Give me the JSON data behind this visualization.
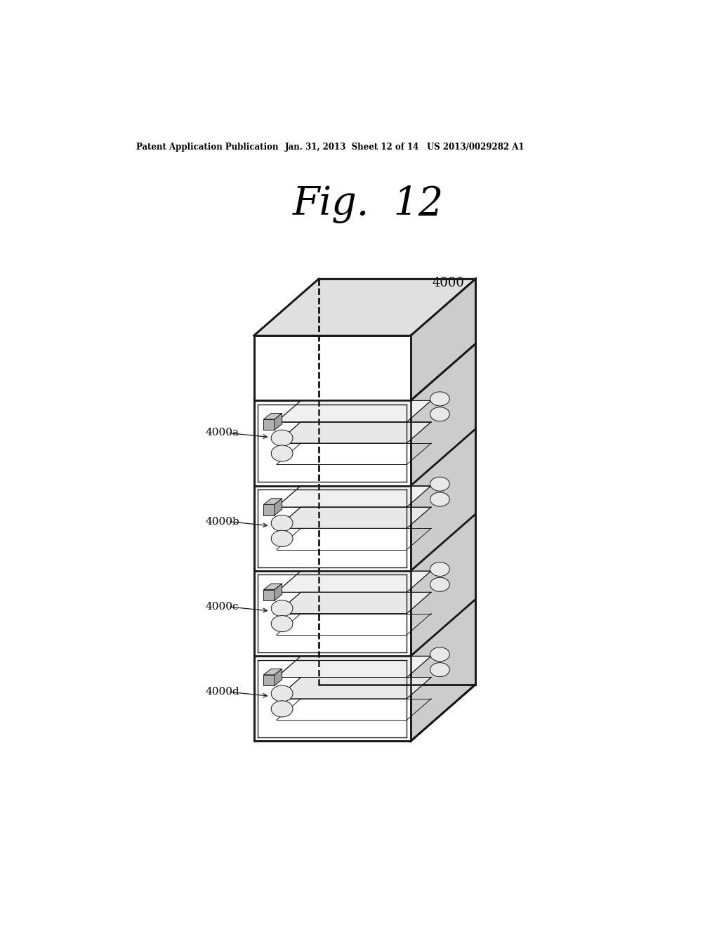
{
  "title": "Fig.  12",
  "patent_left": "Patent Application Publication",
  "patent_mid": "Jan. 31, 2013  Sheet 12 of 14",
  "patent_right": "US 2013/0029282 A1",
  "main_label": "4000",
  "chamber_labels": [
    "4000a",
    "4000b",
    "4000c",
    "4000d"
  ],
  "bg_color": "#ffffff",
  "line_color": "#1a1a1a",
  "lw_outer": 1.8,
  "lw_inner": 1.0,
  "lw_detail": 0.7,
  "face_color_top": "#e0e0e0",
  "face_color_right": "#cccccc",
  "face_color_front": "#ffffff",
  "roller_color": "#e8e8e8",
  "block_color": "#b0b0b0",
  "rail_color": "#d8d8d8"
}
